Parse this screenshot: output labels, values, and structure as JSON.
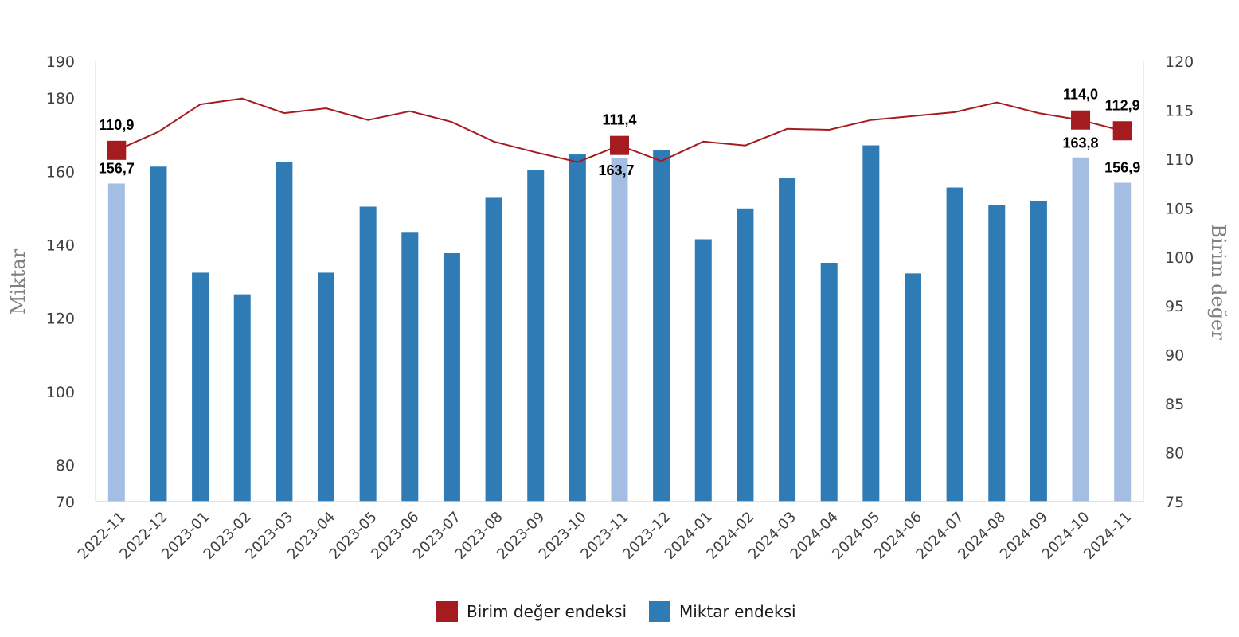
{
  "chart_data": {
    "type": "bar",
    "categories": [
      "2022-11",
      "2022-12",
      "2023-01",
      "2023-02",
      "2023-03",
      "2023-04",
      "2023-05",
      "2023-06",
      "2023-07",
      "2023-08",
      "2023-09",
      "2023-10",
      "2023-11",
      "2023-12",
      "2024-01",
      "2024-02",
      "2024-03",
      "2024-04",
      "2024-05",
      "2024-06",
      "2024-07",
      "2024-08",
      "2024-09",
      "2024-10",
      "2024-11"
    ],
    "series": [
      {
        "name": "Miktar endeksi",
        "type": "bar",
        "axis": "left",
        "color": "#2e7bb6",
        "highlight_color": "#a4bde3",
        "highlight_indices": [
          0,
          12,
          23,
          24
        ],
        "values": [
          156.7,
          161.3,
          132.4,
          126.5,
          162.6,
          132.4,
          150.4,
          143.5,
          137.7,
          152.8,
          160.4,
          164.6,
          163.7,
          165.8,
          141.5,
          149.9,
          158.3,
          135.1,
          167.1,
          132.2,
          155.6,
          150.8,
          151.9,
          163.8,
          156.9
        ]
      },
      {
        "name": "Birim değer endeksi",
        "type": "line",
        "axis": "right",
        "color": "#a51c20",
        "marker_indices": [
          0,
          12,
          23,
          24
        ],
        "values": [
          110.9,
          112.8,
          115.6,
          116.2,
          114.7,
          115.2,
          114.0,
          114.9,
          113.8,
          111.8,
          110.7,
          109.7,
          111.4,
          109.8,
          111.8,
          111.4,
          113.1,
          113.0,
          114.0,
          114.4,
          114.8,
          115.8,
          114.7,
          114.0,
          112.9
        ]
      }
    ],
    "left_axis": {
      "title": "Miktar",
      "ticks": [
        70,
        80,
        100,
        120,
        140,
        160,
        180,
        190
      ],
      "ylim": [
        70,
        190
      ]
    },
    "right_axis": {
      "title": "Birim değer",
      "ticks": [
        75,
        80,
        85,
        90,
        95,
        100,
        105,
        110,
        115,
        120
      ],
      "ylim": [
        75,
        120
      ]
    },
    "data_labels": {
      "bar": [
        {
          "index": 0,
          "text": "156,7"
        },
        {
          "index": 12,
          "text": "163,7"
        },
        {
          "index": 23,
          "text": "163,8"
        },
        {
          "index": 24,
          "text": "156,9"
        }
      ],
      "line": [
        {
          "index": 0,
          "text": "110,9"
        },
        {
          "index": 12,
          "text": "111,4"
        },
        {
          "index": 23,
          "text": "114,0"
        },
        {
          "index": 24,
          "text": "112,9"
        }
      ]
    },
    "legend": {
      "position": "bottom",
      "items": [
        {
          "label": "Birim değer endeksi",
          "color": "#a51c20"
        },
        {
          "label": "Miktar endeksi",
          "color": "#2e7bb6"
        }
      ]
    },
    "grid": false
  }
}
